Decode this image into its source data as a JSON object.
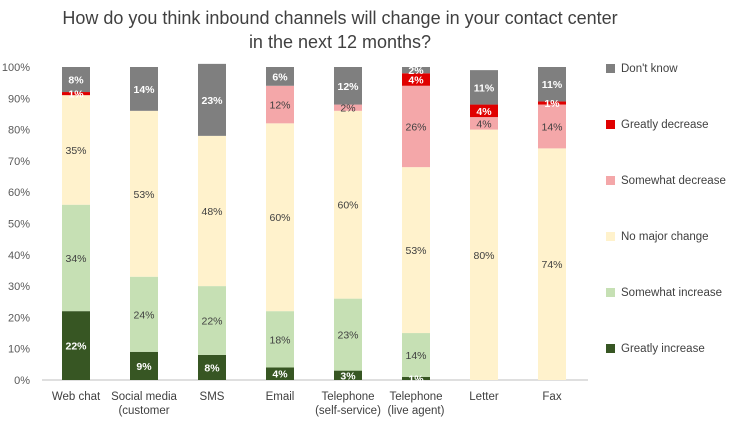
{
  "chart_data": {
    "type": "bar",
    "stacked": true,
    "title": "How do you think inbound channels will change in your contact center in the next 12 months?",
    "categories": [
      "Web chat",
      "Social media\n(customer",
      "SMS",
      "Email",
      "Telephone\n(self-service)",
      "Telephone\n(live agent)",
      "Letter",
      "Fax"
    ],
    "ylim": [
      0,
      100
    ],
    "y_ticks": [
      "0%",
      "10%",
      "20%",
      "30%",
      "40%",
      "50%",
      "60%",
      "70%",
      "80%",
      "90%",
      "100%"
    ],
    "grid": false,
    "legend_position": "right",
    "series": [
      {
        "name": "Greatly increase",
        "color": "#375623",
        "values": [
          22,
          9,
          8,
          4,
          3,
          1,
          0,
          0
        ],
        "labels": [
          "22%",
          "9%",
          "8%",
          "4%",
          "3%",
          "1%",
          "",
          ""
        ]
      },
      {
        "name": "Somewhat increase",
        "color": "#c6e0b4",
        "values": [
          34,
          24,
          22,
          18,
          23,
          14,
          0,
          0
        ],
        "labels": [
          "34%",
          "24%",
          "22%",
          "18%",
          "23%",
          "14%",
          "",
          ""
        ]
      },
      {
        "name": "No major change",
        "color": "#fff2cc",
        "values": [
          35,
          53,
          48,
          60,
          60,
          53,
          80,
          74
        ],
        "labels": [
          "35%",
          "53%",
          "48%",
          "60%",
          "60%",
          "53%",
          "80%",
          "74%"
        ]
      },
      {
        "name": "Somewhat decrease",
        "color": "#f4a7a9",
        "values": [
          0,
          0,
          0,
          12,
          2,
          26,
          4,
          14
        ],
        "labels": [
          "",
          "",
          "",
          "12%",
          "2%",
          "26%",
          "4%",
          "14%"
        ]
      },
      {
        "name": "Greatly decrease",
        "color": "#e00000",
        "values": [
          1,
          0,
          0,
          0,
          0,
          4,
          4,
          1
        ],
        "labels": [
          "1%",
          "",
          "",
          "",
          "",
          "4%",
          "4%",
          "1%"
        ]
      },
      {
        "name": "Don't know",
        "color": "#7f7f7f",
        "values": [
          8,
          14,
          23,
          6,
          12,
          2,
          11,
          11
        ],
        "labels": [
          "8%",
          "14%",
          "23%",
          "6%",
          "12%",
          "2%",
          "11%",
          "11%"
        ]
      }
    ]
  }
}
